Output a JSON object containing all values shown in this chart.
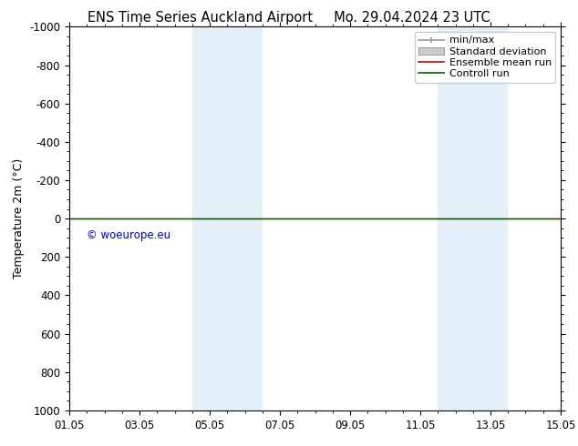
{
  "title_left": "ENS Time Series Auckland Airport",
  "title_right": "Mo. 29.04.2024 23 UTC",
  "ylabel": "Temperature 2m (°C)",
  "ylim_bottom": 1000,
  "ylim_top": -1000,
  "y_ticks": [
    -1000,
    -800,
    -600,
    -400,
    -200,
    0,
    200,
    400,
    600,
    800,
    1000
  ],
  "x_tick_labels": [
    "01.05",
    "03.05",
    "05.05",
    "07.05",
    "09.05",
    "11.05",
    "13.05",
    "15.05"
  ],
  "x_tick_positions": [
    0,
    2,
    4,
    6,
    8,
    10,
    12,
    14
  ],
  "xlim": [
    0,
    14
  ],
  "shaded_bands": [
    {
      "x_start": 3.5,
      "x_end": 4.5
    },
    {
      "x_start": 4.5,
      "x_end": 5.5
    },
    {
      "x_start": 10.5,
      "x_end": 11.5
    },
    {
      "x_start": 11.5,
      "x_end": 12.5
    }
  ],
  "shade_color": "#cce5f5",
  "shade_alpha": 0.55,
  "green_line_y": 0,
  "red_line_y": 0,
  "red_line_color": "#dd0000",
  "green_line_color": "#006600",
  "watermark": "© woeurope.eu",
  "watermark_color": "#0000bb",
  "background_color": "#ffffff",
  "legend_entries": [
    "min/max",
    "Standard deviation",
    "Ensemble mean run",
    "Controll run"
  ],
  "title_fontsize": 10.5,
  "axis_label_fontsize": 9,
  "tick_fontsize": 8.5,
  "legend_fontsize": 8
}
